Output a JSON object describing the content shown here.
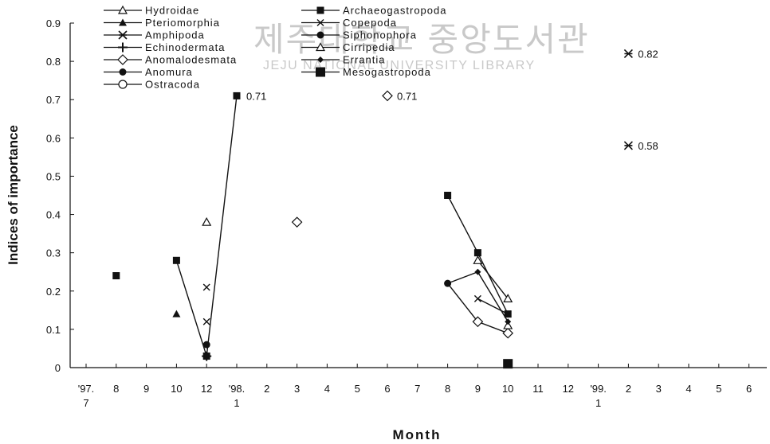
{
  "watermark": {
    "korean": "제주대학교 중앙도서관",
    "english": "JEJU NATIONAL UNIVERSITY LIBRARY"
  },
  "chart_data": {
    "type": "scatter",
    "title": "",
    "xlabel": "Month",
    "ylabel": "Indices of importance",
    "ylim": [
      0,
      0.9
    ],
    "grid": false,
    "legend_position": "top-left",
    "y_ticks": [
      "0",
      "0.1",
      "0.2",
      "0.3",
      "0.4",
      "0.5",
      "0.6",
      "0.7",
      "0.8",
      "0.9"
    ],
    "x_ticks": [
      {
        "x": 0,
        "label": "'97.",
        "sub": "7"
      },
      {
        "x": 1,
        "label": "8"
      },
      {
        "x": 2,
        "label": "9"
      },
      {
        "x": 3,
        "label": "10"
      },
      {
        "x": 4,
        "label": "12"
      },
      {
        "x": 5,
        "label": "'98.",
        "sub": "1"
      },
      {
        "x": 6,
        "label": "2"
      },
      {
        "x": 7,
        "label": "3"
      },
      {
        "x": 8,
        "label": "4"
      },
      {
        "x": 9,
        "label": "5"
      },
      {
        "x": 10,
        "label": "6"
      },
      {
        "x": 11,
        "label": "7"
      },
      {
        "x": 12,
        "label": "8"
      },
      {
        "x": 13,
        "label": "9"
      },
      {
        "x": 14,
        "label": "10"
      },
      {
        "x": 15,
        "label": "11"
      },
      {
        "x": 16,
        "label": "12"
      },
      {
        "x": 17,
        "label": "'99.",
        "sub": "1"
      },
      {
        "x": 18,
        "label": "2"
      },
      {
        "x": 19,
        "label": "3"
      },
      {
        "x": 20,
        "label": "4"
      },
      {
        "x": 21,
        "label": "5"
      },
      {
        "x": 22,
        "label": "6"
      }
    ],
    "series": [
      {
        "name": "Hydroidae",
        "marker": "triangle-open",
        "color": "#111111",
        "points": [
          [
            4,
            0.38
          ],
          [
            13,
            0.28
          ],
          [
            14,
            0.18
          ]
        ]
      },
      {
        "name": "Pteriomorphia",
        "marker": "triangle-filled",
        "color": "#111111",
        "points": [
          [
            3,
            0.14
          ]
        ]
      },
      {
        "name": "Amphipoda",
        "marker": "asterisk",
        "color": "#111111",
        "points": [
          [
            18,
            0.82
          ],
          [
            18,
            0.58
          ]
        ]
      },
      {
        "name": "Echinodermata",
        "marker": "plus",
        "color": "#111111",
        "points": [
          [
            4,
            0.03
          ]
        ]
      },
      {
        "name": "Anomalodesmata",
        "marker": "diamond-open",
        "color": "#111111",
        "points": [
          [
            7,
            0.38
          ],
          [
            10,
            0.71
          ],
          [
            13,
            0.12
          ],
          [
            14,
            0.09
          ]
        ]
      },
      {
        "name": "Anomura",
        "marker": "circle-filled",
        "color": "#111111",
        "points": [
          [
            4,
            0.06
          ],
          [
            12,
            0.22
          ],
          [
            14,
            0.01
          ]
        ]
      },
      {
        "name": "Ostracoda",
        "marker": "circle-open",
        "color": "#111111",
        "points": [
          [
            14,
            0.01
          ]
        ]
      },
      {
        "name": "Archaeogastropoda",
        "marker": "square-filled",
        "color": "#111111",
        "points": [
          [
            1,
            0.24
          ],
          [
            3,
            0.28
          ],
          [
            4,
            0.03
          ],
          [
            5,
            0.71
          ],
          [
            12,
            0.45
          ],
          [
            13,
            0.3
          ],
          [
            14,
            0.14
          ]
        ]
      },
      {
        "name": "Copepoda",
        "marker": "x",
        "color": "#111111",
        "points": [
          [
            4,
            0.21
          ],
          [
            4,
            0.12
          ],
          [
            13,
            0.18
          ],
          [
            14,
            0.14
          ]
        ]
      },
      {
        "name": "Siphonophora",
        "marker": "circle-filled",
        "color": "#111111",
        "points": [
          [
            14,
            0.01
          ]
        ]
      },
      {
        "name": "Cirripedia",
        "marker": "triangle-open",
        "color": "#111111",
        "points": [
          [
            14,
            0.11
          ]
        ]
      },
      {
        "name": "Errantia",
        "marker": "diamond-filled",
        "color": "#111111",
        "points": [
          [
            12,
            0.22
          ],
          [
            13,
            0.25
          ],
          [
            14,
            0.12
          ]
        ]
      },
      {
        "name": "Mesogastropoda",
        "marker": "square-filled-large",
        "color": "#111111",
        "points": [
          [
            14,
            0.01
          ]
        ]
      }
    ],
    "lines": [
      [
        [
          3,
          0.28
        ],
        [
          4,
          0.03
        ],
        [
          5,
          0.71
        ]
      ],
      [
        [
          12,
          0.45
        ],
        [
          13,
          0.3
        ],
        [
          14,
          0.14
        ]
      ],
      [
        [
          13,
          0.28
        ],
        [
          14,
          0.18
        ]
      ],
      [
        [
          13,
          0.18
        ],
        [
          14,
          0.14
        ]
      ],
      [
        [
          12,
          0.22
        ],
        [
          13,
          0.25
        ],
        [
          14,
          0.12
        ]
      ],
      [
        [
          12,
          0.22
        ],
        [
          13,
          0.12
        ],
        [
          14,
          0.09
        ]
      ]
    ],
    "annotations": [
      {
        "x": 5,
        "y": 0.71,
        "text": "0.71"
      },
      {
        "x": 10,
        "y": 0.71,
        "text": "0.71"
      },
      {
        "x": 18,
        "y": 0.82,
        "text": "0.82"
      },
      {
        "x": 18,
        "y": 0.58,
        "text": "0.58"
      }
    ]
  }
}
